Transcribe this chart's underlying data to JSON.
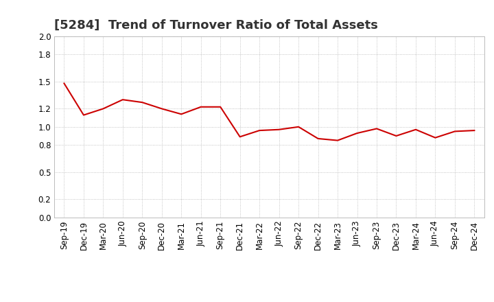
{
  "title": "[5284]  Trend of Turnover Ratio of Total Assets",
  "x_labels": [
    "Sep-19",
    "Dec-19",
    "Mar-20",
    "Jun-20",
    "Sep-20",
    "Dec-20",
    "Mar-21",
    "Jun-21",
    "Sep-21",
    "Dec-21",
    "Mar-22",
    "Jun-22",
    "Sep-22",
    "Dec-22",
    "Mar-23",
    "Jun-23",
    "Sep-23",
    "Dec-23",
    "Mar-24",
    "Jun-24",
    "Sep-24",
    "Dec-24"
  ],
  "values": [
    1.48,
    1.13,
    1.2,
    1.3,
    1.27,
    1.2,
    1.14,
    1.22,
    1.22,
    0.89,
    0.96,
    0.97,
    1.0,
    0.87,
    0.85,
    0.93,
    0.98,
    0.9,
    0.97,
    0.88,
    0.95,
    0.96
  ],
  "line_color": "#cc0000",
  "line_width": 1.5,
  "ylim": [
    0.0,
    2.0
  ],
  "yticks": [
    0.0,
    0.2,
    0.5,
    0.8,
    1.0,
    1.2,
    1.5,
    1.8,
    2.0
  ],
  "grid_color": "#aaaaaa",
  "bg_color": "#ffffff",
  "title_fontsize": 13,
  "tick_fontsize": 8.5
}
